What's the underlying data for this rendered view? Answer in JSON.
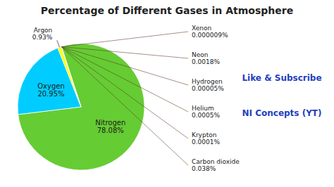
{
  "chart_data": {
    "type": "pie",
    "title": "Percentage of Different Gases in Atmosphere",
    "categories": [
      "Nitrogen",
      "Oxygen",
      "Argon",
      null
    ],
    "values": [
      78.08,
      20.95,
      0.93,
      0.04957
    ],
    "value_labels": [
      "78.08%",
      "20.95%",
      "0.93%",
      null
    ],
    "colors": [
      "#66cc33",
      "#00ccff",
      "#ffff00",
      "#55aa44"
    ],
    "annotations": [
      "Xenon\n0.000009%",
      "Neon\n0.0018%",
      "Hydrogen\n0.00005%",
      "Helium\n0.0005%",
      "Krypton\n0.0001%",
      "Carbon dioxide\n0.038%"
    ],
    "credits": [
      "Like & Subscribe",
      "NI Concepts (YT)"
    ]
  }
}
